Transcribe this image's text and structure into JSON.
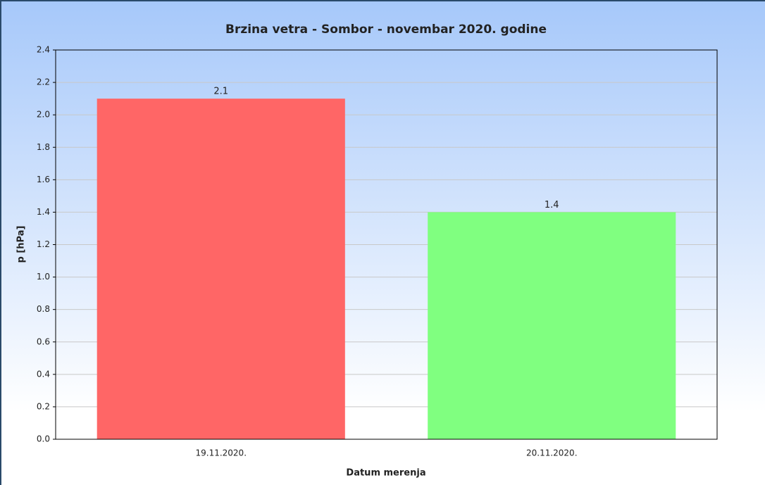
{
  "chart_data": {
    "type": "bar",
    "title": "Brzina vetra - Sombor - novembar 2020. godine",
    "ylabel": "p [hPa]",
    "xlabel": "Datum merenja",
    "categories": [
      "19.11.2020.",
      "20.11.2020."
    ],
    "values": [
      2.1,
      1.4
    ],
    "colors": [
      "#ff6666",
      "#80ff80"
    ],
    "ylim": [
      0,
      2.4
    ],
    "yticks": [
      {
        "value": 0,
        "label": "0.0"
      },
      0.2,
      0.4,
      0.6,
      0.8,
      {
        "value": 1,
        "label": "1.0"
      },
      1.2,
      1.4,
      1.6,
      1.8,
      {
        "value": 2,
        "label": "2.0"
      },
      2.2,
      2.4
    ],
    "grid": true
  }
}
